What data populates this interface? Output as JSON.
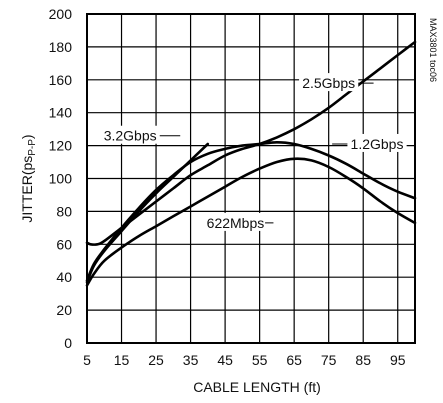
{
  "chart_data": {
    "type": "line",
    "title": "",
    "xlabel": "CABLE LENGTH (ft)",
    "ylabel_main": "JITTER(ps",
    "ylabel_sub": "P-P",
    "ylabel_close": ")",
    "xlim": [
      5,
      100
    ],
    "ylim": [
      0,
      200
    ],
    "x_ticks": [
      5,
      15,
      25,
      35,
      45,
      55,
      65,
      75,
      85,
      95
    ],
    "y_ticks": [
      0,
      20,
      40,
      60,
      80,
      100,
      120,
      140,
      160,
      180,
      200
    ],
    "grid": true,
    "annotation": "MAX3801 toc06",
    "series": [
      {
        "name": "3.2Gbps",
        "x": [
          5,
          7,
          10,
          15,
          20,
          25,
          30,
          35,
          40
        ],
        "y": [
          37,
          47,
          56,
          68,
          80,
          91,
          101,
          111,
          121
        ]
      },
      {
        "name": "2.5Gbps",
        "x": [
          5,
          6,
          8,
          10,
          15,
          20,
          25,
          30,
          35,
          40,
          45,
          50,
          55,
          60,
          65,
          70,
          75,
          80,
          85,
          90,
          95,
          100
        ],
        "y": [
          61,
          60,
          60,
          62,
          70,
          78,
          86,
          94,
          102,
          108,
          114,
          118,
          121,
          125,
          130,
          136,
          143,
          151,
          159,
          167,
          175,
          183
        ]
      },
      {
        "name": "1.2Gbps",
        "x": [
          5,
          7,
          10,
          15,
          20,
          25,
          30,
          35,
          40,
          45,
          50,
          55,
          60,
          65,
          70,
          75,
          80,
          85,
          90,
          95,
          100
        ],
        "y": [
          38,
          48,
          57,
          70,
          82,
          93,
          102,
          110,
          115,
          118,
          120,
          121,
          122,
          121,
          118,
          114,
          109,
          103,
          97,
          92,
          88
        ]
      },
      {
        "name": "622Mbps",
        "x": [
          5,
          7,
          10,
          15,
          20,
          25,
          30,
          35,
          40,
          45,
          50,
          55,
          60,
          65,
          70,
          75,
          80,
          85,
          90,
          95,
          100
        ],
        "y": [
          35,
          42,
          50,
          58,
          65,
          71,
          77,
          83,
          89,
          95,
          101,
          106,
          110,
          112,
          111,
          107,
          101,
          94,
          86,
          79,
          73
        ]
      }
    ],
    "labels": [
      {
        "series": "3.2Gbps",
        "text": "3.2Gbps",
        "tx": 17.5,
        "ty": 126,
        "ax": 32,
        "ay": 126
      },
      {
        "series": "2.5Gbps",
        "text": "2.5Gbps",
        "tx": 75,
        "ty": 158,
        "ax": 88,
        "ay": 158
      },
      {
        "series": "1.2Gbps",
        "text": "1.2Gbps",
        "tx": 89,
        "ty": 121,
        "ax": 76,
        "ay": 121
      },
      {
        "series": "622Mbps",
        "text": "622Mbps",
        "tx": 48,
        "ty": 73,
        "ax": 59,
        "ay": 73
      }
    ]
  }
}
